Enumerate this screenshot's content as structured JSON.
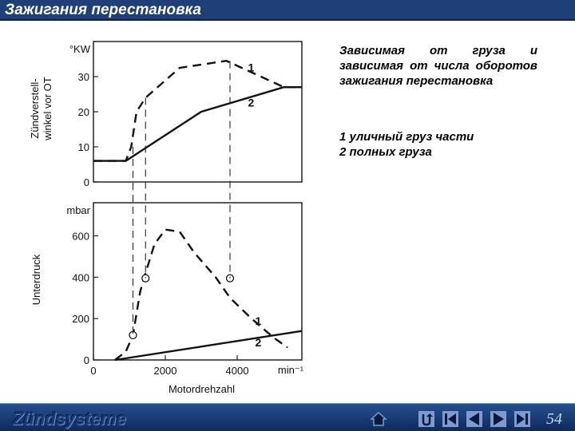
{
  "header": {
    "title": "Зажигания перестановка"
  },
  "description": {
    "text": "Зависимая от груза и зависимая от числа оборотов зажигания перестановка"
  },
  "legend": {
    "item1": "1 уличный груз части",
    "item2": "2 полных груза"
  },
  "footer": {
    "title": "Zündsysteme",
    "page_number": "54",
    "nav_icons": [
      "home-icon",
      "return-icon",
      "first-slide-icon",
      "previous-slide-icon",
      "next-slide-icon",
      "last-slide-icon"
    ]
  },
  "chart_data": [
    {
      "type": "line",
      "ylabel": "Zündverstell-winkel vor OT",
      "yunit": "°KW",
      "yticks": [
        "0",
        "10",
        "20",
        "30"
      ],
      "ylim": [
        0,
        40
      ],
      "xlim": [
        0,
        5800
      ],
      "series": [
        {
          "name": "1",
          "style": "dashed",
          "x": [
            0,
            900,
            1050,
            1200,
            1450,
            2400,
            3700,
            5300,
            5800
          ],
          "y": [
            6,
            6,
            10,
            20,
            24,
            32.5,
            34.5,
            27,
            27
          ]
        },
        {
          "name": "2",
          "style": "solid",
          "x": [
            0,
            900,
            3000,
            5300,
            5800
          ],
          "y": [
            6,
            6,
            20,
            27,
            27
          ]
        }
      ],
      "series_labels": [
        "1",
        "2"
      ]
    },
    {
      "type": "line",
      "ylabel": "Unterdruck",
      "yunit": "mbar",
      "yticks": [
        "0",
        "200",
        "400",
        "600"
      ],
      "ylim": [
        0,
        760
      ],
      "xlabel": "Motordrehzahl",
      "xunit": "min⁻¹",
      "xticks": [
        "0",
        "2000",
        "4000"
      ],
      "xlim": [
        0,
        5800
      ],
      "series": [
        {
          "name": "1",
          "style": "dashed",
          "x": [
            600,
            900,
            1100,
            1300,
            1450,
            1700,
            2000,
            2400,
            2800,
            3400,
            3800,
            4400,
            5000,
            5400
          ],
          "y": [
            0,
            40,
            120,
            330,
            420,
            560,
            630,
            620,
            520,
            400,
            300,
            200,
            110,
            60
          ]
        },
        {
          "name": "2",
          "style": "solid",
          "x": [
            600,
            5800
          ],
          "y": [
            0,
            140
          ]
        }
      ],
      "markers": [
        {
          "x": 1100,
          "y": 120
        },
        {
          "x": 1450,
          "y": 395
        },
        {
          "x": 3800,
          "y": 395
        }
      ],
      "series_labels": [
        "1",
        "2"
      ]
    }
  ]
}
